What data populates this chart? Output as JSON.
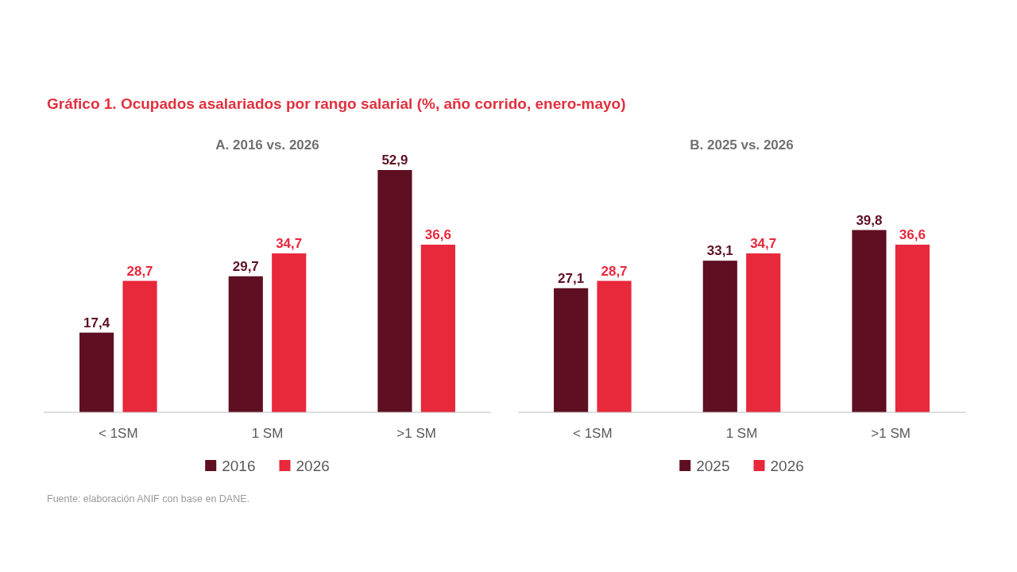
{
  "chart_data": [
    {
      "type": "bar",
      "title": "Gráfico 1. Ocupados asalariados por rango salarial (%, año corrido, enero-mayo)",
      "subtitle": "A. 2016 vs. 2026",
      "categories": [
        "< 1SM",
        "1 SM",
        ">1 SM"
      ],
      "series": [
        {
          "name": "2016",
          "color": "#5e0f22",
          "values": [
            17.4,
            29.7,
            52.9
          ],
          "value_labels": [
            "17,4",
            "29,7",
            "52,9"
          ]
        },
        {
          "name": "2026",
          "color": "#e8283b",
          "values": [
            28.7,
            34.7,
            36.6
          ],
          "value_labels": [
            "28,7",
            "34,7",
            "36,6"
          ]
        }
      ],
      "legend": "bottom",
      "annotations": [
        "Fuente: elaboración ANIF con base en DANE."
      ]
    },
    {
      "type": "bar",
      "subtitle": "B. 2025 vs. 2026",
      "categories": [
        "< 1SM",
        "1 SM",
        ">1 SM"
      ],
      "series": [
        {
          "name": "2025",
          "color": "#5e0f22",
          "values": [
            27.1,
            33.1,
            39.8
          ],
          "value_labels": [
            "27,1",
            "33,1",
            "39,8"
          ]
        },
        {
          "name": "2026",
          "color": "#e8283b",
          "values": [
            28.7,
            34.7,
            36.6
          ],
          "value_labels": [
            "28,7",
            "34,7",
            "36,6"
          ]
        }
      ],
      "legend": "bottom"
    }
  ]
}
